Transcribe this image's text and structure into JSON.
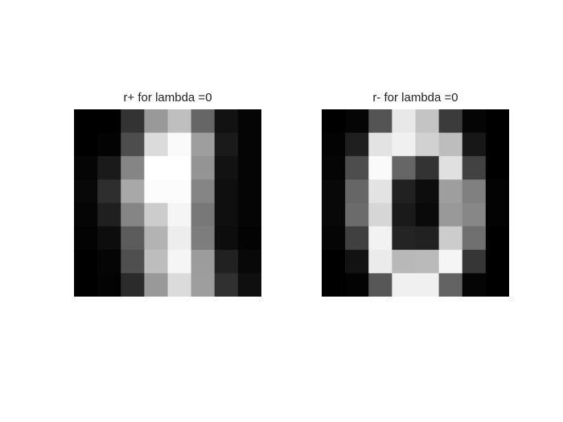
{
  "figure": {
    "background": "#ffffff",
    "colormap": "gray"
  },
  "chart_data": [
    {
      "type": "heatmap",
      "title": "r+ for lambda =0",
      "rows": 8,
      "cols": 8,
      "value_range": [
        0,
        1
      ],
      "values": [
        [
          0.0,
          0.0,
          0.2,
          0.6,
          0.75,
          0.4,
          0.07,
          0.02
        ],
        [
          0.0,
          0.01,
          0.3,
          0.86,
          0.98,
          0.62,
          0.1,
          0.02
        ],
        [
          0.02,
          0.1,
          0.52,
          1.0,
          1.0,
          0.58,
          0.07,
          0.02
        ],
        [
          0.03,
          0.18,
          0.66,
          0.99,
          0.99,
          0.52,
          0.06,
          0.02
        ],
        [
          0.02,
          0.12,
          0.52,
          0.8,
          0.96,
          0.47,
          0.06,
          0.02
        ],
        [
          0.01,
          0.05,
          0.36,
          0.7,
          0.93,
          0.49,
          0.05,
          0.01
        ],
        [
          0.0,
          0.02,
          0.31,
          0.74,
          0.96,
          0.61,
          0.13,
          0.03
        ],
        [
          0.0,
          0.01,
          0.17,
          0.6,
          0.86,
          0.62,
          0.19,
          0.06
        ]
      ]
    },
    {
      "type": "heatmap",
      "title": "r- for lambda =0",
      "rows": 8,
      "cols": 8,
      "value_range": [
        0,
        1
      ],
      "values": [
        [
          0.0,
          0.02,
          0.33,
          0.91,
          0.77,
          0.23,
          0.02,
          0.0
        ],
        [
          0.01,
          0.12,
          0.89,
          0.94,
          0.82,
          0.74,
          0.09,
          0.0
        ],
        [
          0.02,
          0.3,
          0.98,
          0.4,
          0.2,
          0.88,
          0.26,
          0.0
        ],
        [
          0.03,
          0.4,
          0.89,
          0.13,
          0.05,
          0.62,
          0.5,
          0.01
        ],
        [
          0.03,
          0.42,
          0.84,
          0.1,
          0.04,
          0.6,
          0.53,
          0.01
        ],
        [
          0.02,
          0.25,
          0.95,
          0.14,
          0.13,
          0.8,
          0.44,
          0.0
        ],
        [
          0.0,
          0.07,
          0.92,
          0.72,
          0.73,
          0.96,
          0.21,
          0.0
        ],
        [
          0.0,
          0.01,
          0.34,
          0.94,
          0.94,
          0.39,
          0.02,
          0.0
        ]
      ]
    }
  ]
}
